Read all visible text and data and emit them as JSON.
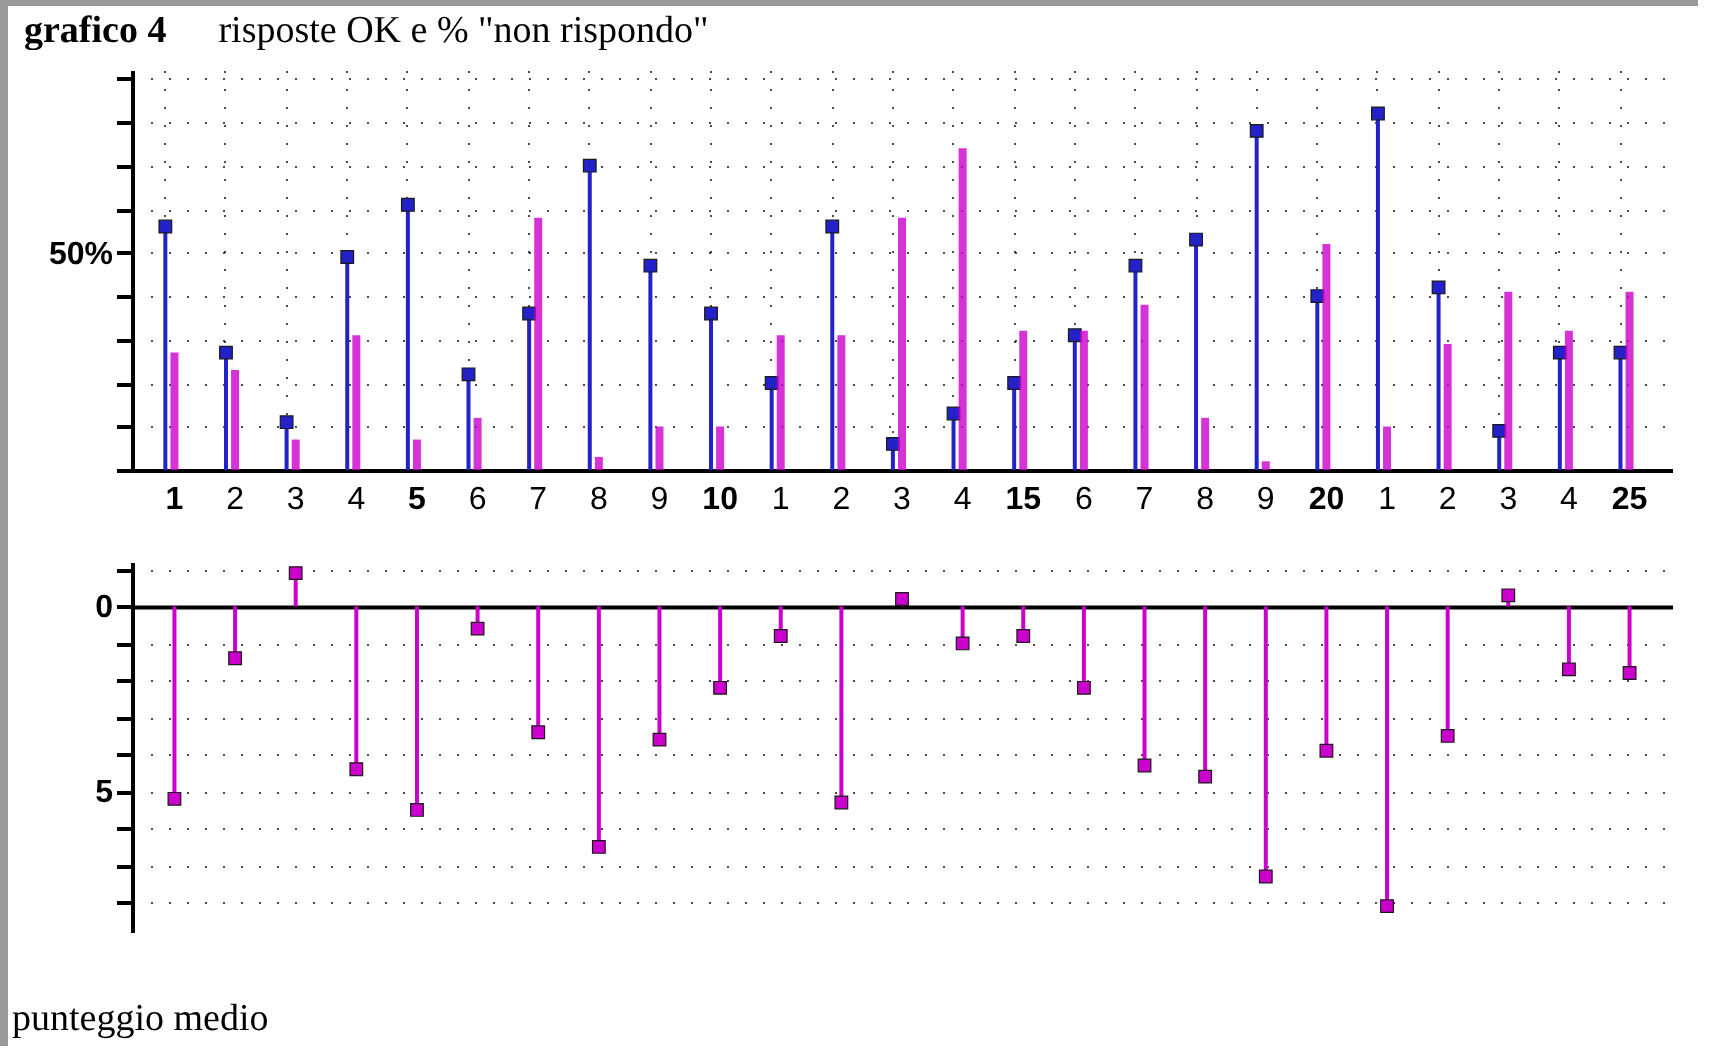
{
  "chart_data": [
    {
      "type": "lollipop",
      "title": "grafico 4",
      "subtitle": "risposte OK e % \"non rispondo\"",
      "categories": [
        "1",
        "2",
        "3",
        "4",
        "5",
        "6",
        "7",
        "8",
        "9",
        "10",
        "1",
        "2",
        "3",
        "4",
        "15",
        "6",
        "7",
        "8",
        "9",
        "20",
        "1",
        "2",
        "3",
        "4",
        "25"
      ],
      "series": [
        {
          "color": "#2222c8",
          "values": [
            56,
            27,
            11,
            49,
            61,
            22,
            36,
            70,
            47,
            36,
            20,
            56,
            6,
            13,
            20,
            31,
            47,
            53,
            78,
            40,
            82,
            42,
            9,
            27,
            27
          ]
        },
        {
          "type": "bar",
          "color": "#cc00cc",
          "values": [
            27,
            23,
            7,
            31,
            7,
            12,
            58,
            3,
            10,
            10,
            31,
            31,
            58,
            74,
            32,
            32,
            38,
            12,
            2,
            52,
            10,
            29,
            41,
            32,
            41
          ]
        }
      ],
      "ylim": [
        0,
        92
      ],
      "yticks": [
        {
          "value": 0,
          "label": null
        },
        {
          "value": 10,
          "label": null
        },
        {
          "value": 20,
          "label": null
        },
        {
          "value": 30,
          "label": null
        },
        {
          "value": 40,
          "label": null
        },
        {
          "value": 50,
          "label": "50%"
        },
        {
          "value": 60,
          "label": null
        },
        {
          "value": 70,
          "label": null
        },
        {
          "value": 80,
          "label": null
        },
        {
          "value": 90,
          "label": null
        }
      ],
      "grid": true,
      "marker": "square"
    },
    {
      "type": "lollipop",
      "categories": [
        "1",
        "2",
        "3",
        "4",
        "5",
        "6",
        "7",
        "8",
        "9",
        "10",
        "1",
        "2",
        "3",
        "4",
        "15",
        "6",
        "7",
        "8",
        "9",
        "20",
        "1",
        "2",
        "3",
        "4",
        "25"
      ],
      "series": [
        {
          "color": "#cc00cc",
          "values": [
            5.2,
            1.4,
            -0.9,
            4.4,
            5.5,
            0.6,
            3.4,
            6.5,
            3.6,
            2.2,
            0.8,
            5.3,
            -0.2,
            1.0,
            0.8,
            2.2,
            4.3,
            4.6,
            7.3,
            3.9,
            8.1,
            3.5,
            -0.3,
            1.7,
            1.8
          ]
        }
      ],
      "ylim": [
        8.8,
        -1.2
      ],
      "yticks": [
        {
          "value": -1,
          "label": null
        },
        0,
        {
          "value": 1,
          "label": null
        },
        {
          "value": 2,
          "label": null
        },
        {
          "value": 3,
          "label": null
        },
        {
          "value": 4,
          "label": null
        },
        5,
        {
          "value": 6,
          "label": null
        },
        {
          "value": 7,
          "label": null
        },
        {
          "value": 8,
          "label": null
        }
      ],
      "grid": true,
      "marker": "square",
      "tick_labels": "y",
      "annotations": [
        "punteggio medio"
      ]
    }
  ]
}
